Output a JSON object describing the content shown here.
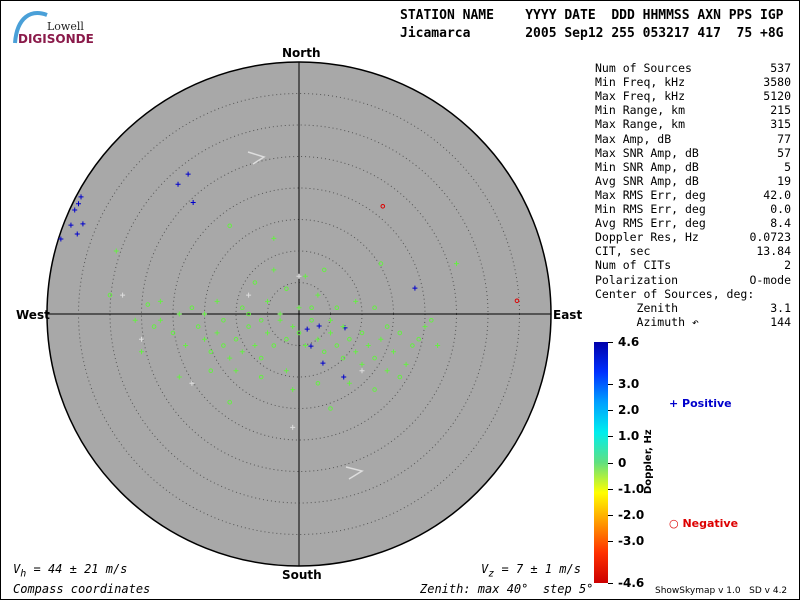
{
  "logo": {
    "line1": "Lowell",
    "line2": "DIGISONDE"
  },
  "header": {
    "labels": "STATION NAME    YYYY DATE  DDD HHMMSS AXN PPS IGP",
    "values": "Jicamarca       2005 Sep12 255 053217 417  75 +8G"
  },
  "stats": [
    {
      "label": "Num of Sources",
      "value": "537"
    },
    {
      "label": "Min Freq, kHz",
      "value": "3580"
    },
    {
      "label": "Max Freq, kHz",
      "value": "5120"
    },
    {
      "label": "Min Range, km",
      "value": "215"
    },
    {
      "label": "Max Range, km",
      "value": "315"
    },
    {
      "label": "Max Amp, dB",
      "value": "77"
    },
    {
      "label": "Max SNR Amp, dB",
      "value": "57"
    },
    {
      "label": "Min SNR Amp, dB",
      "value": "5"
    },
    {
      "label": "Avg SNR Amp, dB",
      "value": "19"
    },
    {
      "label": "Max RMS Err, deg",
      "value": "42.0"
    },
    {
      "label": "Min RMS Err, deg",
      "value": "0.0"
    },
    {
      "label": "Avg RMS Err, deg",
      "value": "8.4"
    },
    {
      "label": "Doppler Res, Hz",
      "value": "0.0723"
    },
    {
      "label": "CIT, sec",
      "value": "13.84"
    },
    {
      "label": "Num of CITs",
      "value": "2"
    },
    {
      "label": "Polarization",
      "value": "O-mode"
    },
    {
      "label": "Center of Sources, deg:",
      "value": ""
    },
    {
      "label": "      Zenith",
      "value": "3.1"
    },
    {
      "label": "      Azimuth ↶",
      "value": "144"
    }
  ],
  "directions": {
    "north": "North",
    "south": "South",
    "east": "East",
    "west": "West"
  },
  "footer": {
    "vh": "V",
    "vh_sub": "h",
    "vh_rest": " = 44 ± 21 m/s",
    "vz": "V",
    "vz_sub": "z",
    "vz_rest": " = 7 ± 1 m/s",
    "coords": "Compass coordinates",
    "zenith": "Zenith: max 40°  step 5°",
    "version": "ShowSkymap v 1.0   SD v 4.2"
  },
  "legend": {
    "positive": "Positive",
    "negative": "Negative",
    "positive_color": "#0000cc",
    "negative_color": "#dd0000",
    "axis_label": "Doppler, Hz"
  },
  "colorbar": {
    "ticks": [
      "4.6",
      "3.0",
      "2.0",
      "1.0",
      "0",
      "-1.0",
      "-2.0",
      "-3.0",
      "-4.6"
    ],
    "min": -4.6,
    "max": 4.6
  },
  "chart_data": {
    "type": "scatter",
    "coordinates": "compass (east, north) zenith degrees",
    "zenith_max": 40,
    "zenith_step": 5,
    "background": "#a8a8a8",
    "series": [
      {
        "name": "Positive",
        "marker": "plus",
        "color": "#0000cc",
        "points": [
          [
            -34.6,
            18.6
          ],
          [
            -35,
            17.5
          ],
          [
            -35.6,
            16.5
          ],
          [
            -36.2,
            14.1
          ],
          [
            -37.8,
            11.9
          ],
          [
            -35.2,
            12.7
          ],
          [
            -34.3,
            14.3
          ],
          [
            -17.6,
            22.2
          ],
          [
            -19.2,
            20.6
          ],
          [
            -16.8,
            17.7
          ],
          [
            18.4,
            4.1
          ],
          [
            1.3,
            -2.4
          ],
          [
            1.9,
            -5.1
          ],
          [
            3.8,
            -7.8
          ],
          [
            7.1,
            -10
          ],
          [
            3.2,
            -1.9
          ],
          [
            7.3,
            -2.2
          ]
        ]
      },
      {
        "name": "Negative",
        "marker": "circle",
        "color": "#dd0000",
        "points": [
          [
            13.3,
            17.1
          ],
          [
            34.6,
            2.1
          ]
        ]
      },
      {
        "name": "Near-zero",
        "marker": "mixed",
        "color": "#66ee44",
        "points": [
          [
            -24,
            1.5
          ],
          [
            -22,
            -1
          ],
          [
            -20,
            -3
          ],
          [
            -18,
            -5
          ],
          [
            -16,
            -2
          ],
          [
            -15,
            -4
          ],
          [
            -14,
            -6
          ],
          [
            -13,
            -3
          ],
          [
            -12,
            -5
          ],
          [
            -11,
            -7
          ],
          [
            -10,
            -4
          ],
          [
            -9,
            -6
          ],
          [
            -8,
            -2
          ],
          [
            -7,
            -5
          ],
          [
            -6,
            -7
          ],
          [
            -5,
            -3
          ],
          [
            -4,
            -5
          ],
          [
            -3,
            -1
          ],
          [
            -2,
            -4
          ],
          [
            -1,
            -2
          ],
          [
            0,
            -3
          ],
          [
            1,
            -5
          ],
          [
            2,
            -1
          ],
          [
            3,
            -4
          ],
          [
            4,
            -6
          ],
          [
            5,
            -3
          ],
          [
            6,
            -5
          ],
          [
            7,
            -2
          ],
          [
            8,
            -4
          ],
          [
            9,
            -6
          ],
          [
            10,
            -3
          ],
          [
            11,
            -5
          ],
          [
            12,
            -7
          ],
          [
            13,
            -4
          ],
          [
            14,
            -2
          ],
          [
            15,
            -6
          ],
          [
            16,
            -3
          ],
          [
            17,
            -8
          ],
          [
            18,
            -5
          ],
          [
            20,
            -2
          ],
          [
            21,
            -1
          ],
          [
            -19,
            0
          ],
          [
            -17,
            1
          ],
          [
            -13,
            2
          ],
          [
            -9,
            1
          ],
          [
            -5,
            2
          ],
          [
            -2,
            4
          ],
          [
            1,
            6
          ],
          [
            4,
            7
          ],
          [
            -4,
            7
          ],
          [
            -7,
            5
          ],
          [
            3,
            3
          ],
          [
            6,
            1
          ],
          [
            9,
            2
          ],
          [
            12,
            1
          ],
          [
            -10,
            -9
          ],
          [
            -6,
            -10
          ],
          [
            -2,
            -9
          ],
          [
            3,
            -11
          ],
          [
            8,
            -11
          ],
          [
            12,
            -12
          ],
          [
            10,
            -8
          ],
          [
            -14,
            -9
          ],
          [
            -19,
            -10
          ],
          [
            -11,
            -14
          ],
          [
            -1,
            -12
          ],
          [
            5,
            -15
          ],
          [
            -25,
            -6
          ],
          [
            -23,
            -2
          ],
          [
            -22,
            2
          ],
          [
            -30,
            3
          ],
          [
            -29,
            10
          ],
          [
            -11,
            14
          ],
          [
            -4,
            12
          ],
          [
            13,
            8
          ],
          [
            25,
            8
          ],
          [
            -12,
            -1
          ],
          [
            -3,
            0
          ],
          [
            2,
            1
          ],
          [
            5,
            -1
          ],
          [
            -8,
            0
          ],
          [
            -15,
            0
          ],
          [
            -6,
            -1
          ],
          [
            0,
            1
          ],
          [
            7,
            -7
          ],
          [
            14,
            -9
          ],
          [
            16,
            -10
          ],
          [
            -26,
            -1
          ],
          [
            19,
            -4
          ],
          [
            22,
            -5
          ]
        ]
      },
      {
        "name": "Other",
        "marker": "plus",
        "color": "#dddddd",
        "points": [
          [
            -28,
            3
          ],
          [
            -17,
            -11
          ],
          [
            -1,
            -18
          ],
          [
            -25,
            -4
          ],
          [
            -8,
            3
          ],
          [
            0,
            6
          ],
          [
            10,
            -9
          ]
        ]
      }
    ]
  }
}
